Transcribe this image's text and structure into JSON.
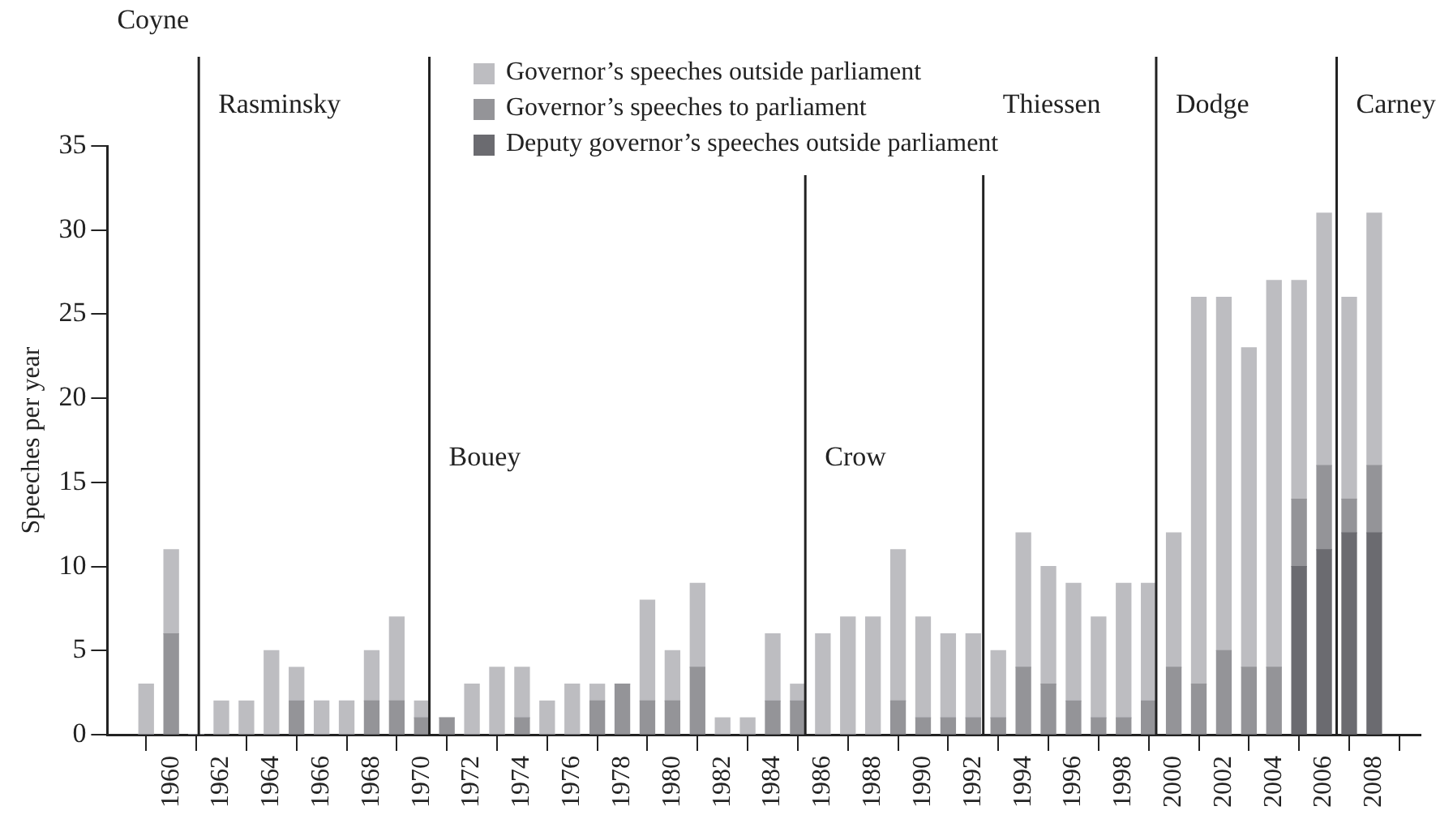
{
  "chart_data": {
    "type": "bar",
    "ylabel": "Speeches per year",
    "stacked": true,
    "x": [
      1959,
      1960,
      1961,
      1962,
      1963,
      1964,
      1965,
      1966,
      1967,
      1968,
      1969,
      1970,
      1971,
      1972,
      1973,
      1974,
      1975,
      1976,
      1977,
      1978,
      1979,
      1980,
      1981,
      1982,
      1983,
      1984,
      1985,
      1986,
      1987,
      1988,
      1989,
      1990,
      1991,
      1992,
      1993,
      1994,
      1995,
      1996,
      1997,
      1998,
      1999,
      2000,
      2001,
      2002,
      2003,
      2004,
      2005,
      2006,
      2007,
      2008
    ],
    "series": [
      {
        "name": "Deputy governor’s speeches outside parliament",
        "color": "#6b6b70",
        "values": [
          0,
          0,
          0,
          0,
          0,
          0,
          0,
          0,
          0,
          0,
          0,
          0,
          0,
          0,
          0,
          0,
          0,
          0,
          0,
          0,
          0,
          0,
          0,
          0,
          0,
          0,
          0,
          0,
          0,
          0,
          0,
          0,
          0,
          0,
          0,
          0,
          0,
          0,
          0,
          0,
          0,
          0,
          0,
          0,
          0,
          0,
          10,
          11,
          12,
          12
        ]
      },
      {
        "name": "Governor’s speeches to parliament",
        "color": "#949498",
        "values": [
          0,
          6,
          0,
          0,
          0,
          0,
          2,
          0,
          0,
          2,
          2,
          1,
          1,
          0,
          0,
          1,
          0,
          0,
          2,
          3,
          2,
          2,
          4,
          0,
          0,
          2,
          2,
          0,
          0,
          0,
          2,
          1,
          1,
          1,
          1,
          4,
          3,
          2,
          1,
          1,
          2,
          4,
          3,
          5,
          4,
          4,
          4,
          5,
          2,
          4
        ]
      },
      {
        "name": "Governor’s speeches outside parliament",
        "color": "#bdbdc1",
        "values": [
          3,
          5,
          0,
          2,
          2,
          5,
          2,
          2,
          2,
          3,
          5,
          1,
          0,
          3,
          4,
          3,
          2,
          3,
          1,
          0,
          6,
          3,
          5,
          1,
          1,
          4,
          1,
          6,
          7,
          7,
          9,
          6,
          5,
          5,
          4,
          8,
          7,
          7,
          6,
          8,
          7,
          8,
          23,
          21,
          19,
          23,
          13,
          15,
          12,
          15
        ]
      }
    ],
    "xlim": [
      1958.5,
      2008.8
    ],
    "xticks": [
      1960,
      1962,
      1964,
      1966,
      1968,
      1970,
      1972,
      1974,
      1976,
      1978,
      1980,
      1982,
      1984,
      1986,
      1988,
      1990,
      1992,
      1994,
      1996,
      1998,
      2000,
      2002,
      2004,
      2006,
      2008
    ],
    "ylim": [
      0,
      35
    ],
    "yticks": [
      0,
      5,
      10,
      15,
      20,
      25,
      30,
      35
    ],
    "ref_lines": [
      {
        "axis": "x",
        "value": 1961.1,
        "label": "Rasminsky"
      },
      {
        "axis": "x",
        "value": 1970.3,
        "label": "Bouey"
      },
      {
        "axis": "x",
        "value": 1985.3,
        "label": "Crow"
      },
      {
        "axis": "x",
        "value": 1992.4,
        "label": "Thiessen"
      },
      {
        "axis": "x",
        "value": 1999.3,
        "label": "Dodge"
      },
      {
        "axis": "x",
        "value": 2006.5,
        "label": "Carney"
      }
    ],
    "annotations": [
      "Coyne"
    ],
    "legend": "top",
    "grid": false
  }
}
